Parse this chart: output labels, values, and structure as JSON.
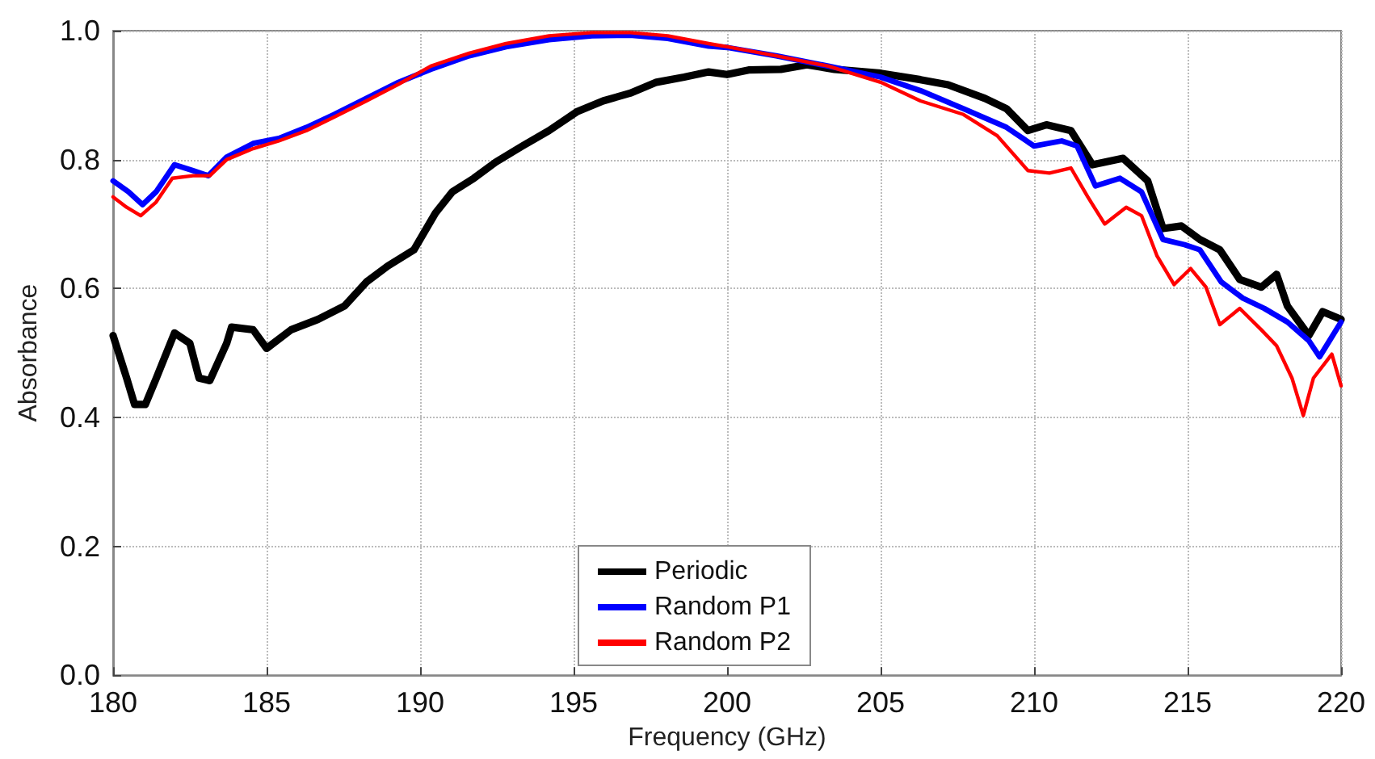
{
  "chart_data": {
    "type": "line",
    "xlabel": "Frequency (GHz)",
    "ylabel": "Absorbance",
    "xlim": [
      180,
      220
    ],
    "xticks": [
      180,
      185,
      190,
      195,
      200,
      205,
      210,
      215,
      220
    ],
    "ylim": [
      0,
      1
    ],
    "yticks": [
      {
        "value": 0,
        "label": "0.0"
      },
      0.2,
      0.4,
      0.6,
      0.8,
      {
        "value": 1,
        "label": "1.0"
      }
    ],
    "grid": true,
    "legend": "bottom",
    "marker": "none",
    "line_style": "solid",
    "series": [
      {
        "name": "Periodic",
        "color": "#000000",
        "x": [
          180.0,
          180.44,
          180.7,
          181.05,
          181.4,
          182.0,
          182.5,
          182.8,
          183.15,
          183.7,
          183.86,
          184.56,
          185.0,
          185.8,
          186.67,
          187.54,
          188.25,
          188.95,
          189.8,
          190.5,
          191.05,
          191.75,
          192.46,
          193.33,
          194.2,
          195.1,
          195.96,
          196.84,
          197.7,
          198.6,
          199.4,
          200.0,
          200.7,
          201.75,
          202.6,
          203.5,
          205.0,
          206.3,
          207.2,
          208.4,
          209.1,
          209.8,
          210.4,
          211.2,
          211.9,
          212.9,
          213.7,
          214.2,
          214.8,
          215.4,
          216.05,
          216.7,
          217.4,
          217.9,
          218.25,
          218.95,
          219.4,
          220.0
        ],
        "values": [
          0.527,
          0.461,
          0.42,
          0.42,
          0.46,
          0.531,
          0.515,
          0.461,
          0.457,
          0.515,
          0.54,
          0.536,
          0.507,
          0.536,
          0.552,
          0.573,
          0.61,
          0.635,
          0.66,
          0.717,
          0.75,
          0.771,
          0.796,
          0.821,
          0.845,
          0.874,
          0.891,
          0.903,
          0.92,
          0.928,
          0.936,
          0.932,
          0.939,
          0.94,
          0.947,
          0.94,
          0.934,
          0.924,
          0.916,
          0.895,
          0.879,
          0.845,
          0.854,
          0.845,
          0.792,
          0.802,
          0.767,
          0.693,
          0.697,
          0.676,
          0.66,
          0.614,
          0.602,
          0.622,
          0.573,
          0.527,
          0.564,
          0.552
        ]
      },
      {
        "name": "Random P1",
        "color": "#0000ff",
        "x": [
          180.0,
          180.5,
          180.96,
          181.4,
          182.0,
          182.6,
          183.1,
          183.7,
          184.56,
          185.4,
          186.3,
          187.2,
          188.25,
          189.3,
          190.35,
          191.6,
          192.8,
          194.2,
          195.6,
          196.84,
          198.07,
          199.4,
          200.0,
          201.6,
          203.3,
          205.0,
          206.3,
          207.7,
          209.1,
          210.0,
          210.9,
          211.4,
          212.0,
          212.8,
          213.5,
          214.2,
          214.9,
          215.4,
          216.1,
          216.8,
          217.5,
          218.25,
          218.95,
          219.3,
          220.0
        ],
        "values": [
          0.767,
          0.75,
          0.73,
          0.75,
          0.792,
          0.783,
          0.775,
          0.804,
          0.825,
          0.833,
          0.85,
          0.87,
          0.895,
          0.92,
          0.94,
          0.961,
          0.975,
          0.986,
          0.992,
          0.993,
          0.988,
          0.976,
          0.974,
          0.961,
          0.945,
          0.928,
          0.907,
          0.879,
          0.85,
          0.821,
          0.829,
          0.821,
          0.759,
          0.771,
          0.75,
          0.676,
          0.668,
          0.66,
          0.61,
          0.585,
          0.569,
          0.548,
          0.519,
          0.494,
          0.548
        ]
      },
      {
        "name": "Random P2",
        "color": "#ff0000",
        "x": [
          180.0,
          180.44,
          180.9,
          181.4,
          181.93,
          182.6,
          183.15,
          183.7,
          184.56,
          185.4,
          186.3,
          187.2,
          188.25,
          189.3,
          190.35,
          191.6,
          192.8,
          194.2,
          195.6,
          196.84,
          198.07,
          199.4,
          200.0,
          201.6,
          203.3,
          205.0,
          206.3,
          207.7,
          208.8,
          209.8,
          210.5,
          211.2,
          211.75,
          212.3,
          213.0,
          213.5,
          214.0,
          214.56,
          215.1,
          215.6,
          216.05,
          216.7,
          217.4,
          217.9,
          218.4,
          218.77,
          219.1,
          219.7,
          220.0
        ],
        "values": [
          0.742,
          0.726,
          0.713,
          0.734,
          0.771,
          0.775,
          0.775,
          0.8,
          0.817,
          0.829,
          0.845,
          0.866,
          0.891,
          0.917,
          0.945,
          0.965,
          0.98,
          0.992,
          0.997,
          0.997,
          0.992,
          0.98,
          0.975,
          0.961,
          0.945,
          0.92,
          0.891,
          0.87,
          0.837,
          0.783,
          0.779,
          0.787,
          0.742,
          0.7,
          0.726,
          0.713,
          0.651,
          0.606,
          0.631,
          0.602,
          0.544,
          0.569,
          0.536,
          0.511,
          0.461,
          0.403,
          0.461,
          0.498,
          0.449
        ]
      }
    ]
  }
}
